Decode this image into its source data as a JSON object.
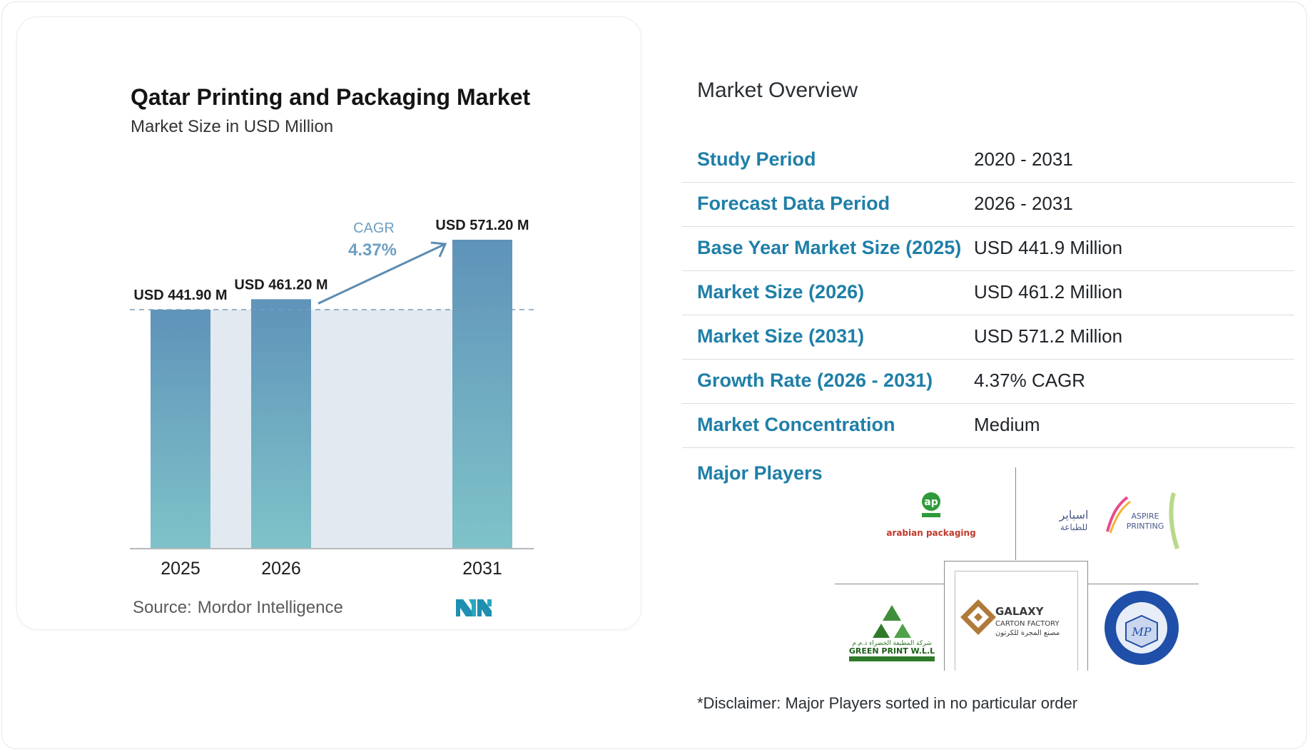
{
  "chart": {
    "title": "Qatar Printing and Packaging Market",
    "subtitle": "Market Size in USD Million",
    "cagr_label": "CAGR",
    "cagr_value": "4.37%",
    "source_label": "Source:",
    "source_value": "Mordor Intelligence",
    "colors": {
      "bar_top": "#5f93b9",
      "bar_bottom": "#7fc3c9",
      "band": "#e2e9f1",
      "arrow": "#5b8cb3",
      "cagr_text": "#6e9fc2"
    }
  },
  "chart_data": {
    "type": "bar",
    "categories": [
      "2025",
      "2026",
      "2031"
    ],
    "values": [
      441.9,
      461.2,
      571.2
    ],
    "data_labels": [
      "USD 441.90 M",
      "USD 461.20 M",
      "USD 571.20 M"
    ],
    "ylim": [
      0,
      571.2
    ],
    "grid": false,
    "reference_line": 441.9
  },
  "overview": {
    "title": "Market Overview",
    "rows": [
      {
        "label": "Study Period",
        "value": "2020 - 2031"
      },
      {
        "label": "Forecast Data Period",
        "value": "2026 - 2031"
      },
      {
        "label": "Base Year Market Size (2025)",
        "value": "USD 441.9 Million"
      },
      {
        "label": "Market Size (2026)",
        "value": "USD 461.2 Million"
      },
      {
        "label": "Market Size (2031)",
        "value": "USD 571.2 Million"
      },
      {
        "label": "Growth Rate (2026 - 2031)",
        "value": "4.37% CAGR"
      },
      {
        "label": "Market Concentration",
        "value": "Medium"
      }
    ]
  },
  "players": {
    "title": "Major Players",
    "logos": [
      {
        "name": "arabian packaging",
        "icon": "arabian-packaging-logo"
      },
      {
        "name": "Aspire Printing",
        "icon": "aspire-printing-logo"
      },
      {
        "name": "Galaxy Carton Factory",
        "icon": "galaxy-carton-factory-logo"
      },
      {
        "name": "Green Print W.L.L.",
        "icon": "green-print-logo"
      },
      {
        "name": "MATCO Packaging L.L.C",
        "icon": "matco-packaging-logo"
      }
    ],
    "disclaimer": "*Disclaimer: Major Players sorted in no particular order"
  }
}
